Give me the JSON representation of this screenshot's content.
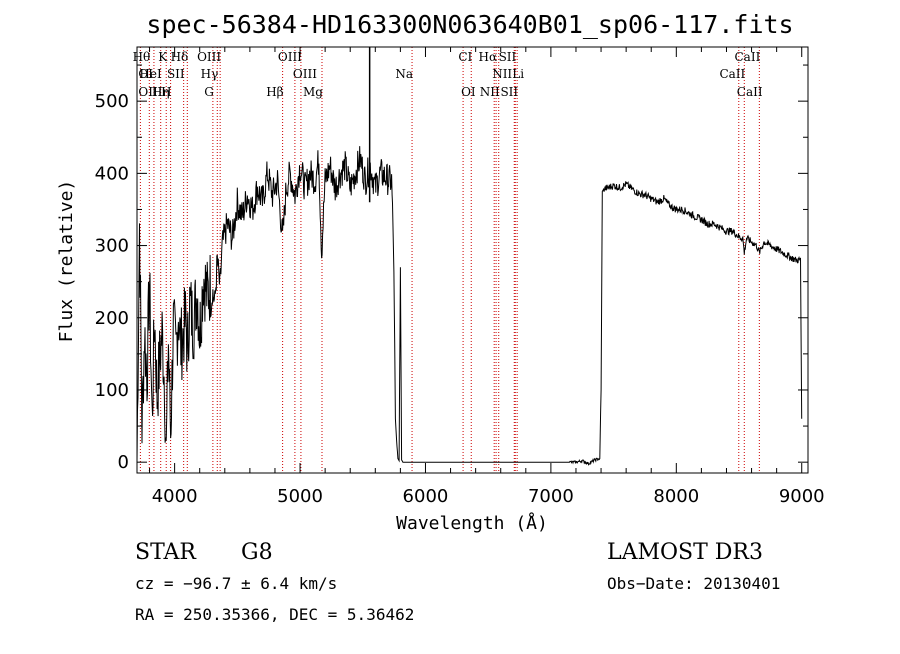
{
  "chart_data": {
    "type": "line",
    "title": "spec-56384-HD163300N063640B01_sp06-117.fits",
    "xlabel": "Wavelength (Å)",
    "ylabel": "Flux (relative)",
    "xlim": [
      3700,
      9050
    ],
    "ylim": [
      -15,
      575
    ],
    "xticks": [
      4000,
      5000,
      6000,
      7000,
      8000,
      9000
    ],
    "xtick_labels": [
      "4000",
      "5000",
      "6000",
      "7000",
      "8000",
      "9000"
    ],
    "yticks": [
      0,
      100,
      200,
      300,
      400,
      500
    ],
    "ytick_labels": [
      "0",
      "100",
      "200",
      "300",
      "400",
      "500"
    ],
    "grid": false,
    "series": [
      {
        "name": "flux",
        "color": "#000000",
        "x": [
          3700,
          3720,
          3740,
          3760,
          3780,
          3800,
          3820,
          3840,
          3860,
          3880,
          3900,
          3920,
          3933,
          3950,
          3968,
          3990,
          4010,
          4030,
          4050,
          4070,
          4090,
          4101,
          4120,
          4150,
          4180,
          4200,
          4230,
          4260,
          4290,
          4320,
          4340,
          4361,
          4380,
          4420,
          4460,
          4500,
          4540,
          4580,
          4620,
          4660,
          4700,
          4740,
          4780,
          4820,
          4861,
          4890,
          4920,
          4960,
          5000,
          5040,
          5080,
          5120,
          5150,
          5172,
          5200,
          5240,
          5280,
          5320,
          5360,
          5400,
          5440,
          5480,
          5520,
          5560,
          5600,
          5640,
          5680,
          5710,
          5730,
          5745,
          5755,
          5760,
          5770,
          5780,
          5790,
          5800,
          5810,
          5820,
          5850,
          5900,
          6000,
          6200,
          6400,
          6600,
          6800,
          7000,
          7100,
          7200,
          7250,
          7300,
          7350,
          7390,
          7400,
          7410,
          7420,
          7450,
          7500,
          7550,
          7600,
          7650,
          7700,
          7750,
          7800,
          7850,
          7900,
          7950,
          8000,
          8050,
          8100,
          8150,
          8200,
          8250,
          8300,
          8350,
          8400,
          8450,
          8500,
          8530,
          8542,
          8560,
          8600,
          8640,
          8662,
          8700,
          8750,
          8800,
          8850,
          8900,
          8950,
          8990,
          9000
        ],
        "values": [
          0,
          330,
          50,
          180,
          120,
          250,
          60,
          200,
          90,
          140,
          180,
          110,
          10,
          170,
          40,
          190,
          150,
          210,
          160,
          180,
          200,
          150,
          220,
          190,
          240,
          180,
          260,
          230,
          250,
          220,
          280,
          240,
          300,
          330,
          310,
          360,
          340,
          370,
          350,
          380,
          360,
          400,
          370,
          390,
          310,
          380,
          400,
          370,
          410,
          380,
          400,
          390,
          420,
          290,
          390,
          410,
          380,
          400,
          410,
          380,
          400,
          420,
          390,
          410,
          380,
          400,
          395,
          390,
          390,
          300,
          150,
          60,
          30,
          5,
          2,
          270,
          3,
          0,
          0,
          0,
          0,
          0,
          0,
          0,
          0,
          0,
          0,
          0,
          2,
          -2,
          3,
          5,
          100,
          375,
          378,
          380,
          383,
          380,
          385,
          378,
          372,
          370,
          365,
          360,
          365,
          355,
          350,
          350,
          345,
          340,
          336,
          330,
          330,
          325,
          320,
          320,
          312,
          310,
          290,
          310,
          305,
          300,
          290,
          305,
          300,
          295,
          290,
          285,
          280,
          280,
          60
        ]
      }
    ],
    "spike": {
      "x": 5555,
      "y_top": 575,
      "y_bottom": 360
    },
    "spectral_lines": [
      {
        "label": "Hθ",
        "x": 3798,
        "row": 0,
        "anchor": "end"
      },
      {
        "label": "K",
        "x": 3933,
        "row": 0,
        "anchor": "end"
      },
      {
        "label": "Hδ",
        "x": 4101,
        "row": 0,
        "anchor": "end"
      },
      {
        "label": "OIII",
        "x": 4363,
        "row": 0,
        "anchor": "end"
      },
      {
        "label": "OIII",
        "x": 5007,
        "row": 0,
        "anchor": "end"
      },
      {
        "label": "CI",
        "x": 6365,
        "row": 0,
        "anchor": "end"
      },
      {
        "label": "Hα",
        "x": 6563,
        "row": 0,
        "anchor": "end"
      },
      {
        "label": "SII",
        "x": 6716,
        "row": 0,
        "anchor": "end"
      },
      {
        "label": "CaII",
        "x": 8662,
        "row": 0,
        "anchor": "end"
      },
      {
        "label": "OI",
        "x": 3727,
        "row": 1,
        "anchor": "start"
      },
      {
        "label": "HeI",
        "x": 3889,
        "row": 1,
        "anchor": "end"
      },
      {
        "label": "SII",
        "x": 4072,
        "row": 1,
        "anchor": "end"
      },
      {
        "label": "Hγ",
        "x": 4340,
        "row": 1,
        "anchor": "end"
      },
      {
        "label": "OIII",
        "x": 4959,
        "row": 1,
        "anchor": "start"
      },
      {
        "label": "Na",
        "x": 5893,
        "row": 1,
        "anchor": "end"
      },
      {
        "label": "NII",
        "x": 6548,
        "row": 1,
        "anchor": "start"
      },
      {
        "label": "Li",
        "x": 6708,
        "row": 1,
        "anchor": "start"
      },
      {
        "label": "CaII",
        "x": 8542,
        "row": 1,
        "anchor": "end"
      },
      {
        "label": "OIII",
        "x": 3727,
        "row": 2,
        "anchor": "start"
      },
      {
        "label": "Hη",
        "x": 3835,
        "row": 2,
        "anchor": "start"
      },
      {
        "label": "H",
        "x": 3968,
        "row": 2,
        "anchor": "end"
      },
      {
        "label": "G",
        "x": 4305,
        "row": 2,
        "anchor": "end"
      },
      {
        "label": "Hβ",
        "x": 4861,
        "row": 2,
        "anchor": "end"
      },
      {
        "label": "Mg",
        "x": 5175,
        "row": 2,
        "anchor": "end"
      },
      {
        "label": "OI",
        "x": 6300,
        "row": 2,
        "anchor": "start"
      },
      {
        "label": "NII",
        "x": 6584,
        "row": 2,
        "anchor": "end"
      },
      {
        "label": "SII",
        "x": 6731,
        "row": 2,
        "anchor": "end"
      },
      {
        "label": "CaII",
        "x": 8498,
        "row": 2,
        "anchor": "start"
      }
    ],
    "line_markers": [
      3727,
      3798,
      3835,
      3889,
      3933,
      3968,
      4072,
      4101,
      4305,
      4340,
      4363,
      4861,
      4959,
      5007,
      5175,
      5893,
      6300,
      6365,
      6548,
      6563,
      6584,
      6708,
      6716,
      6731,
      8498,
      8542,
      8662
    ],
    "marker_color": "#cc0000"
  },
  "info": {
    "object_class": "STAR",
    "subclass": "G8",
    "survey": "LAMOST DR3",
    "cz": "cz = −96.7 ± 6.4 km/s",
    "obs_date": "Obs−Date: 20130401",
    "coords": "RA = 250.35366, DEC =   5.36462"
  }
}
